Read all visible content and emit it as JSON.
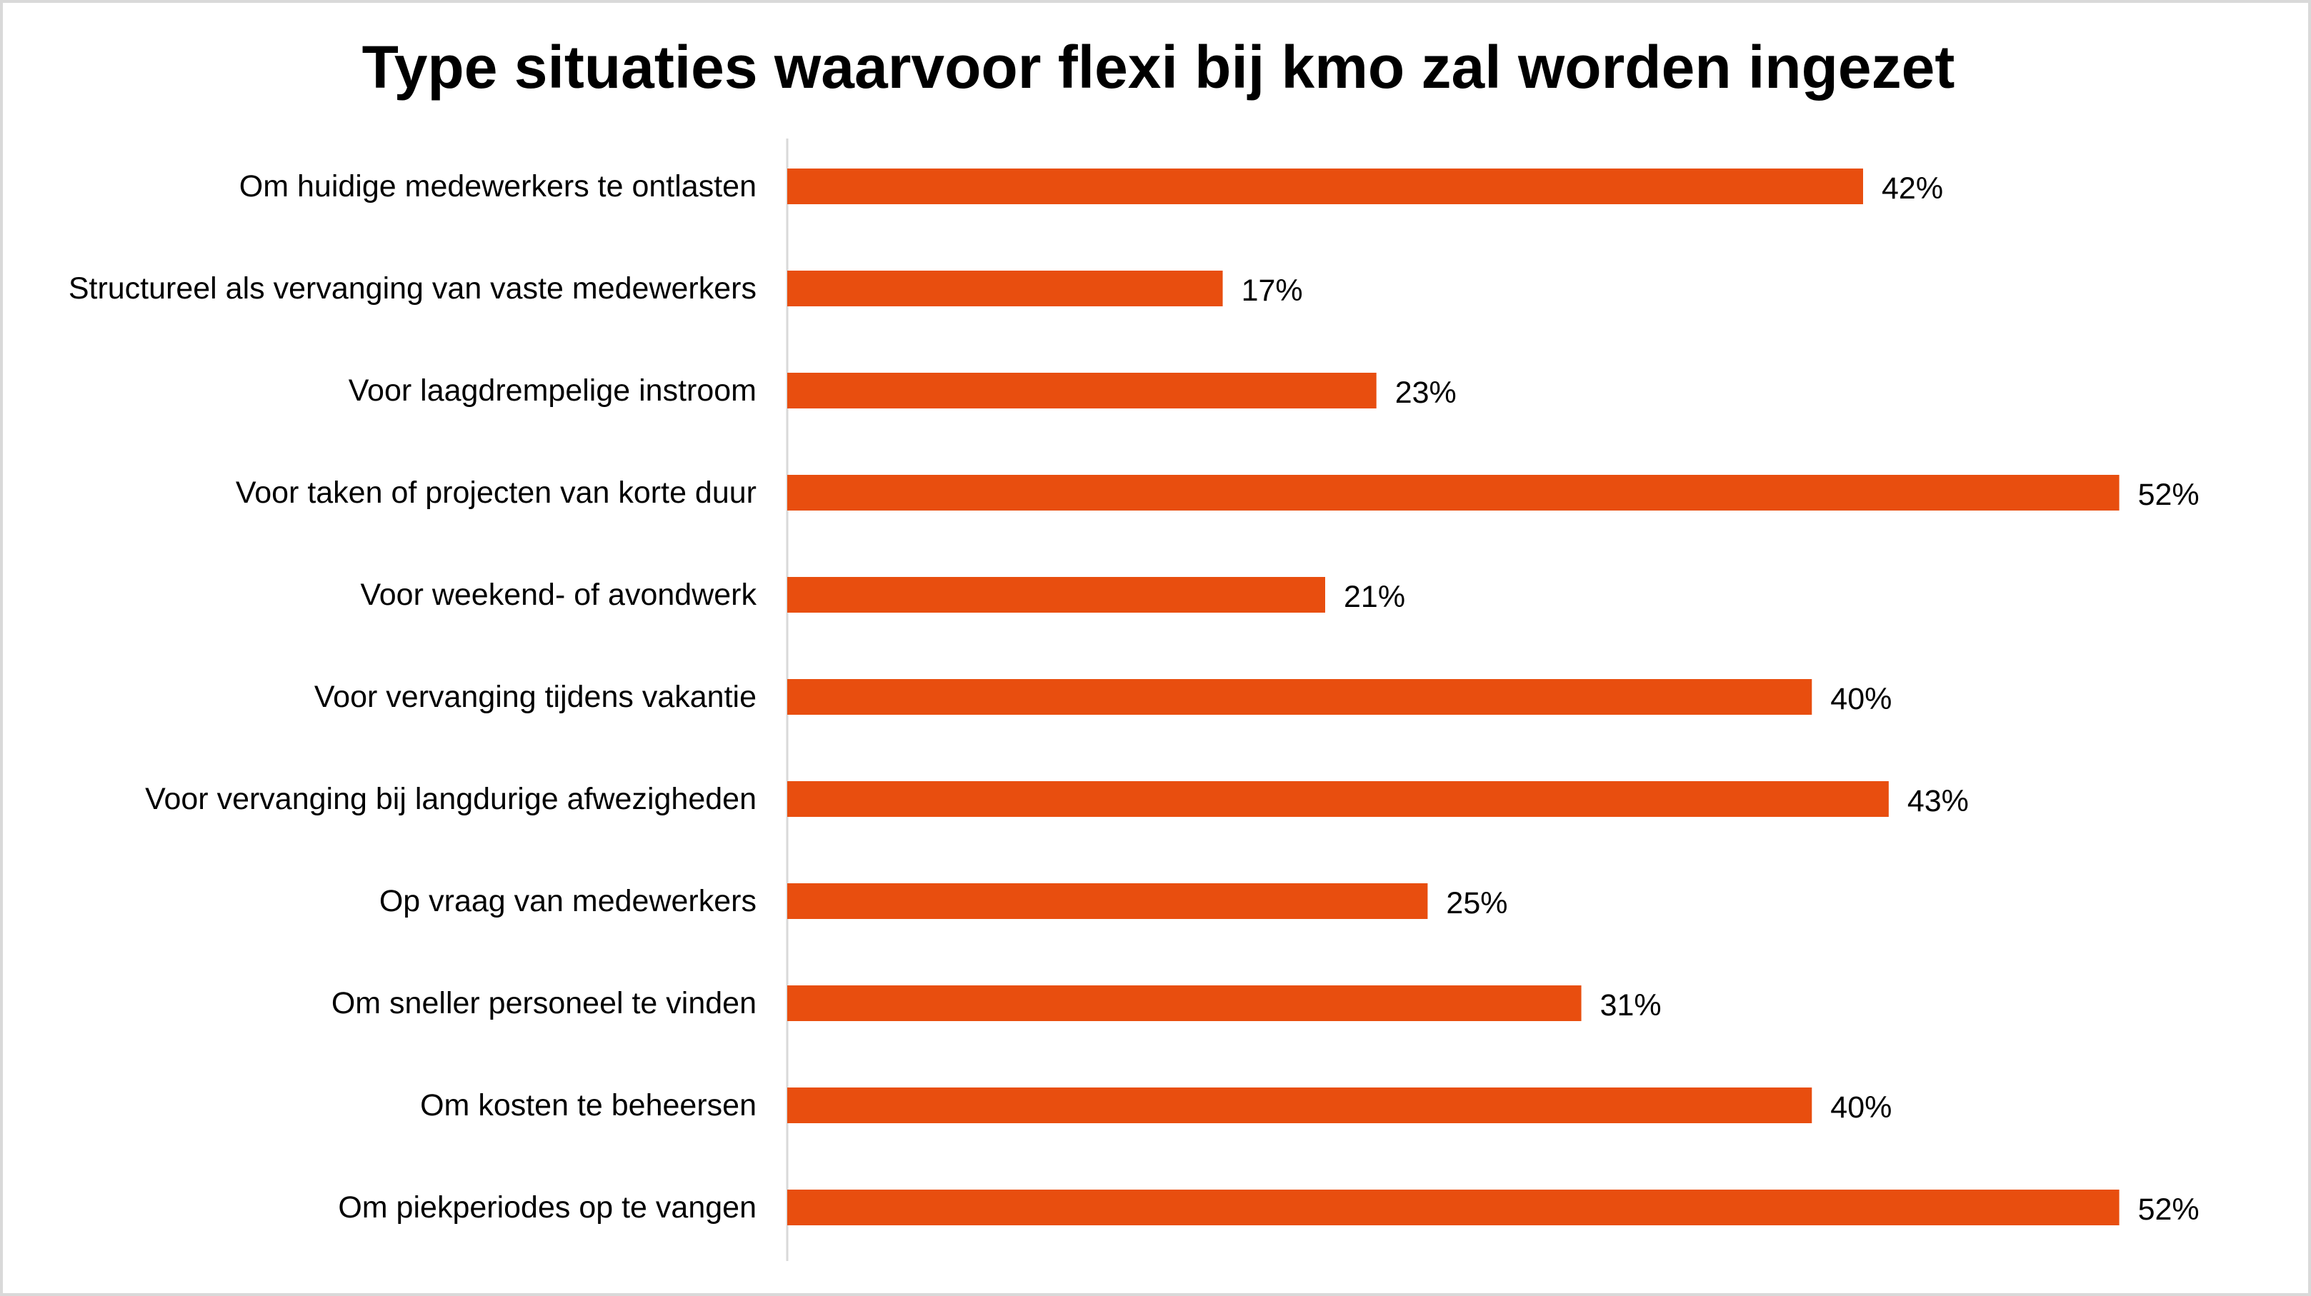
{
  "chart_data": {
    "type": "bar",
    "orientation": "horizontal",
    "title": "Type situaties waarvoor flexi bij kmo zal worden ingezet",
    "xlabel": "",
    "ylabel": "",
    "xlim": [
      0,
      56
    ],
    "grid": false,
    "legend": "none",
    "bar_color": "#E84E0F",
    "categories": [
      "Om huidige medewerkers te ontlasten",
      "Structureel als vervanging van vaste medewerkers",
      "Voor laagdrempelige instroom",
      "Voor taken of projecten van korte duur",
      "Voor weekend- of avondwerk",
      "Voor vervanging tijdens vakantie",
      "Voor vervanging bij langdurige afwezigheden",
      "Op vraag van medewerkers",
      "Om sneller personeel te vinden",
      "Om kosten te beheersen",
      "Om piekperiodes op te vangen"
    ],
    "values": [
      42,
      17,
      23,
      52,
      21,
      40,
      43,
      25,
      31,
      40,
      52
    ],
    "value_labels": [
      "42%",
      "17%",
      "23%",
      "52%",
      "21%",
      "40%",
      "43%",
      "25%",
      "31%",
      "40%",
      "52%"
    ]
  }
}
